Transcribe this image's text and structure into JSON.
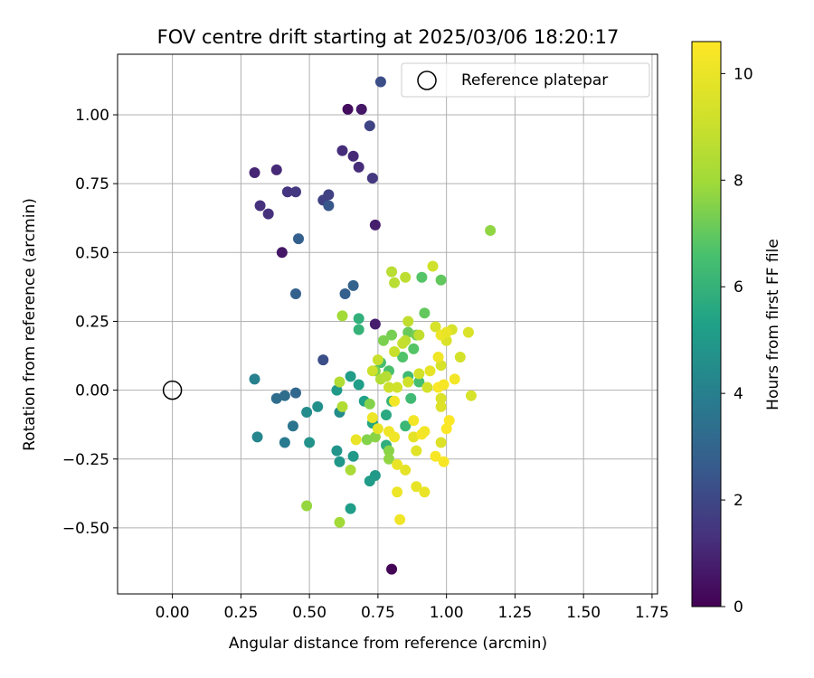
{
  "chart_data": {
    "type": "scatter",
    "title": "FOV centre drift starting at 2025/03/06 18:20:17",
    "xlabel": "Angular distance from reference (arcmin)",
    "ylabel": "Rotation from reference (arcmin)",
    "xlim": [
      -0.2,
      1.77
    ],
    "ylim": [
      -0.74,
      1.22
    ],
    "xticks": [
      "0.00",
      "0.25",
      "0.50",
      "0.75",
      "1.00",
      "1.25",
      "1.50",
      "1.75"
    ],
    "yticks": [
      "−0.50",
      "−0.25",
      "0.00",
      "0.25",
      "0.50",
      "0.75",
      "1.00"
    ],
    "grid": true,
    "legend": {
      "placement": "top-right",
      "entries": [
        "Reference platepar"
      ]
    },
    "reference_point": {
      "x": 0.0,
      "y": 0.0
    },
    "colorbar": {
      "label": "Hours from first FF file",
      "range": [
        0,
        10.6
      ],
      "ticks": [
        "0",
        "2",
        "4",
        "6",
        "8",
        "10"
      ],
      "colormap": "viridis"
    },
    "points": [
      {
        "x": 0.8,
        "y": -0.65,
        "h": 0.1
      },
      {
        "x": 0.64,
        "y": 1.02,
        "h": 0.3
      },
      {
        "x": 0.69,
        "y": 1.02,
        "h": 0.6
      },
      {
        "x": 0.4,
        "y": 0.5,
        "h": 0.6
      },
      {
        "x": 0.74,
        "y": 0.6,
        "h": 0.8
      },
      {
        "x": 0.74,
        "y": 0.24,
        "h": 0.8
      },
      {
        "x": 0.3,
        "y": 0.79,
        "h": 1.0
      },
      {
        "x": 0.38,
        "y": 0.8,
        "h": 1.1
      },
      {
        "x": 0.66,
        "y": 0.85,
        "h": 1.1
      },
      {
        "x": 0.62,
        "y": 0.87,
        "h": 1.2
      },
      {
        "x": 0.68,
        "y": 0.81,
        "h": 1.2
      },
      {
        "x": 0.32,
        "y": 0.67,
        "h": 1.3
      },
      {
        "x": 0.35,
        "y": 0.64,
        "h": 1.3
      },
      {
        "x": 0.42,
        "y": 0.72,
        "h": 1.4
      },
      {
        "x": 0.45,
        "y": 0.72,
        "h": 1.5
      },
      {
        "x": 0.73,
        "y": 0.77,
        "h": 1.5
      },
      {
        "x": 0.55,
        "y": 0.69,
        "h": 1.8
      },
      {
        "x": 0.57,
        "y": 0.71,
        "h": 1.8
      },
      {
        "x": 0.72,
        "y": 0.96,
        "h": 1.9
      },
      {
        "x": 0.76,
        "y": 1.12,
        "h": 2.2
      },
      {
        "x": 0.55,
        "y": 0.11,
        "h": 2.2
      },
      {
        "x": 0.57,
        "y": 0.67,
        "h": 2.5
      },
      {
        "x": 0.46,
        "y": 0.55,
        "h": 2.8
      },
      {
        "x": 0.45,
        "y": 0.35,
        "h": 2.8
      },
      {
        "x": 0.63,
        "y": 0.35,
        "h": 2.8
      },
      {
        "x": 0.66,
        "y": 0.38,
        "h": 2.9
      },
      {
        "x": 0.45,
        "y": -0.01,
        "h": 3.1
      },
      {
        "x": 0.38,
        "y": -0.03,
        "h": 3.3
      },
      {
        "x": 0.41,
        "y": -0.02,
        "h": 3.3
      },
      {
        "x": 0.44,
        "y": -0.13,
        "h": 3.6
      },
      {
        "x": 0.41,
        "y": -0.19,
        "h": 3.8
      },
      {
        "x": 0.3,
        "y": 0.04,
        "h": 4.0
      },
      {
        "x": 0.31,
        "y": -0.17,
        "h": 4.2
      },
      {
        "x": 0.49,
        "y": -0.08,
        "h": 4.5
      },
      {
        "x": 0.53,
        "y": -0.06,
        "h": 4.6
      },
      {
        "x": 0.5,
        "y": -0.19,
        "h": 4.7
      },
      {
        "x": 0.61,
        "y": -0.08,
        "h": 4.5
      },
      {
        "x": 0.6,
        "y": -0.22,
        "h": 4.8
      },
      {
        "x": 0.61,
        "y": -0.26,
        "h": 4.9
      },
      {
        "x": 0.66,
        "y": -0.24,
        "h": 5.0
      },
      {
        "x": 0.74,
        "y": -0.31,
        "h": 5.0
      },
      {
        "x": 0.72,
        "y": -0.33,
        "h": 5.1
      },
      {
        "x": 0.65,
        "y": -0.43,
        "h": 5.2
      },
      {
        "x": 0.6,
        "y": 0.0,
        "h": 5.0
      },
      {
        "x": 0.65,
        "y": 0.05,
        "h": 5.1
      },
      {
        "x": 0.68,
        "y": 0.02,
        "h": 5.2
      },
      {
        "x": 0.7,
        "y": -0.04,
        "h": 5.3
      },
      {
        "x": 0.73,
        "y": -0.12,
        "h": 5.5
      },
      {
        "x": 0.78,
        "y": -0.09,
        "h": 5.6
      },
      {
        "x": 0.78,
        "y": -0.2,
        "h": 5.8
      },
      {
        "x": 0.68,
        "y": 0.26,
        "h": 5.9
      },
      {
        "x": 0.68,
        "y": 0.22,
        "h": 6.0
      },
      {
        "x": 0.8,
        "y": -0.04,
        "h": 6.0
      },
      {
        "x": 0.85,
        "y": -0.13,
        "h": 6.2
      },
      {
        "x": 0.87,
        "y": -0.03,
        "h": 6.3
      },
      {
        "x": 0.86,
        "y": 0.05,
        "h": 6.3
      },
      {
        "x": 0.9,
        "y": 0.03,
        "h": 6.5
      },
      {
        "x": 0.76,
        "y": 0.1,
        "h": 6.5
      },
      {
        "x": 0.79,
        "y": 0.07,
        "h": 6.6
      },
      {
        "x": 0.84,
        "y": 0.12,
        "h": 6.7
      },
      {
        "x": 0.88,
        "y": 0.15,
        "h": 6.8
      },
      {
        "x": 0.91,
        "y": 0.41,
        "h": 6.8
      },
      {
        "x": 0.92,
        "y": 0.28,
        "h": 7.0
      },
      {
        "x": 0.98,
        "y": 0.4,
        "h": 7.0
      },
      {
        "x": 0.86,
        "y": 0.21,
        "h": 7.1
      },
      {
        "x": 0.89,
        "y": 0.2,
        "h": 7.3
      },
      {
        "x": 0.8,
        "y": 0.2,
        "h": 7.3
      },
      {
        "x": 0.77,
        "y": 0.18,
        "h": 7.4
      },
      {
        "x": 0.74,
        "y": 0.07,
        "h": 7.4
      },
      {
        "x": 0.72,
        "y": -0.05,
        "h": 7.5
      },
      {
        "x": 0.71,
        "y": -0.18,
        "h": 7.5
      },
      {
        "x": 0.74,
        "y": -0.17,
        "h": 7.6
      },
      {
        "x": 0.79,
        "y": -0.22,
        "h": 7.6
      },
      {
        "x": 0.79,
        "y": -0.25,
        "h": 7.7
      },
      {
        "x": 1.16,
        "y": 0.58,
        "h": 7.7
      },
      {
        "x": 0.49,
        "y": -0.42,
        "h": 7.8
      },
      {
        "x": 0.61,
        "y": -0.48,
        "h": 8.0
      },
      {
        "x": 0.65,
        "y": -0.29,
        "h": 8.2
      },
      {
        "x": 0.62,
        "y": 0.27,
        "h": 8.0
      },
      {
        "x": 0.62,
        "y": -0.06,
        "h": 8.4
      },
      {
        "x": 0.61,
        "y": 0.03,
        "h": 8.4
      },
      {
        "x": 0.76,
        "y": 0.04,
        "h": 8.4
      },
      {
        "x": 0.78,
        "y": 0.05,
        "h": 8.5
      },
      {
        "x": 0.8,
        "y": 0.43,
        "h": 8.6
      },
      {
        "x": 0.81,
        "y": 0.39,
        "h": 8.6
      },
      {
        "x": 0.85,
        "y": 0.41,
        "h": 8.7
      },
      {
        "x": 0.85,
        "y": 0.18,
        "h": 8.7
      },
      {
        "x": 0.86,
        "y": 0.25,
        "h": 8.8
      },
      {
        "x": 0.9,
        "y": 0.2,
        "h": 8.8
      },
      {
        "x": 0.84,
        "y": 0.17,
        "h": 8.9
      },
      {
        "x": 0.81,
        "y": 0.14,
        "h": 9.0
      },
      {
        "x": 0.75,
        "y": 0.11,
        "h": 9.0
      },
      {
        "x": 0.73,
        "y": 0.07,
        "h": 9.1
      },
      {
        "x": 0.79,
        "y": 0.01,
        "h": 9.1
      },
      {
        "x": 0.82,
        "y": 0.01,
        "h": 9.2
      },
      {
        "x": 0.86,
        "y": 0.03,
        "h": 9.2
      },
      {
        "x": 0.9,
        "y": 0.06,
        "h": 9.3
      },
      {
        "x": 0.93,
        "y": 0.01,
        "h": 9.3
      },
      {
        "x": 0.95,
        "y": 0.45,
        "h": 9.2
      },
      {
        "x": 0.96,
        "y": 0.23,
        "h": 9.4
      },
      {
        "x": 0.98,
        "y": 0.09,
        "h": 9.4
      },
      {
        "x": 1.0,
        "y": 0.18,
        "h": 9.5
      },
      {
        "x": 1.02,
        "y": 0.22,
        "h": 9.4
      },
      {
        "x": 1.05,
        "y": 0.12,
        "h": 9.3
      },
      {
        "x": 1.08,
        "y": 0.21,
        "h": 9.5
      },
      {
        "x": 1.09,
        "y": -0.02,
        "h": 9.4
      },
      {
        "x": 0.98,
        "y": -0.03,
        "h": 9.5
      },
      {
        "x": 0.98,
        "y": -0.06,
        "h": 9.6
      },
      {
        "x": 0.98,
        "y": -0.19,
        "h": 9.6
      },
      {
        "x": 0.89,
        "y": -0.22,
        "h": 9.7
      },
      {
        "x": 0.88,
        "y": -0.17,
        "h": 9.8
      },
      {
        "x": 0.85,
        "y": -0.29,
        "h": 9.8
      },
      {
        "x": 0.89,
        "y": -0.35,
        "h": 9.9
      },
      {
        "x": 0.92,
        "y": -0.37,
        "h": 10.0
      },
      {
        "x": 0.82,
        "y": -0.37,
        "h": 10.1
      },
      {
        "x": 0.83,
        "y": -0.47,
        "h": 10.2
      },
      {
        "x": 0.82,
        "y": -0.27,
        "h": 10.0
      },
      {
        "x": 0.75,
        "y": -0.14,
        "h": 9.9
      },
      {
        "x": 0.67,
        "y": -0.18,
        "h": 10.0
      },
      {
        "x": 0.73,
        "y": -0.1,
        "h": 10.1
      },
      {
        "x": 0.79,
        "y": -0.15,
        "h": 10.2
      },
      {
        "x": 0.81,
        "y": -0.17,
        "h": 10.2
      },
      {
        "x": 0.81,
        "y": -0.04,
        "h": 10.3
      },
      {
        "x": 0.88,
        "y": -0.11,
        "h": 10.3
      },
      {
        "x": 0.91,
        "y": -0.16,
        "h": 10.4
      },
      {
        "x": 0.92,
        "y": -0.15,
        "h": 10.3
      },
      {
        "x": 0.96,
        "y": -0.24,
        "h": 10.4
      },
      {
        "x": 0.99,
        "y": -0.26,
        "h": 10.4
      },
      {
        "x": 1.0,
        "y": -0.14,
        "h": 10.5
      },
      {
        "x": 1.01,
        "y": -0.11,
        "h": 10.5
      },
      {
        "x": 0.97,
        "y": 0.01,
        "h": 10.5
      },
      {
        "x": 0.99,
        "y": 0.02,
        "h": 10.4
      },
      {
        "x": 1.03,
        "y": 0.04,
        "h": 10.3
      },
      {
        "x": 0.97,
        "y": 0.12,
        "h": 10.2
      },
      {
        "x": 0.98,
        "y": 0.2,
        "h": 10.1
      },
      {
        "x": 1.0,
        "y": 0.21,
        "h": 10.0
      },
      {
        "x": 0.94,
        "y": 0.07,
        "h": 9.9
      }
    ]
  }
}
